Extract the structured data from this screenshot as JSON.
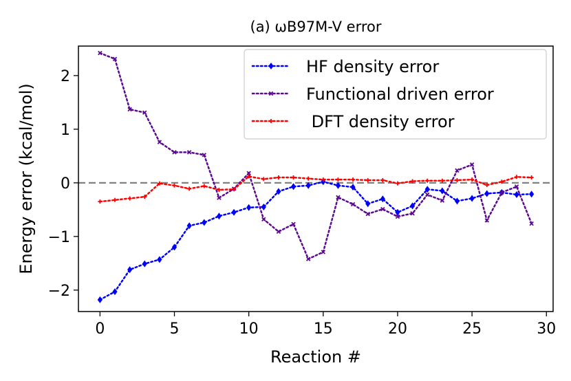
{
  "chart_data": {
    "type": "line",
    "title": "(a) ωB97M-V error",
    "xlabel": "Reaction #",
    "ylabel": "Energy error (kcal/mol)",
    "xlim": [
      -1.45,
      30.45
    ],
    "ylim": [
      -2.4,
      2.55
    ],
    "xticks": [
      0,
      5,
      10,
      15,
      20,
      25,
      30
    ],
    "yticks": [
      -2,
      -1,
      0,
      1,
      2
    ],
    "ytick_labels": [
      "−2",
      "−1",
      "0",
      "1",
      "2"
    ],
    "reference_line": {
      "y": 0,
      "style": "dashed",
      "color": "#808080"
    },
    "legend_position": "top-right",
    "x": [
      0,
      1,
      2,
      3,
      4,
      5,
      6,
      7,
      8,
      9,
      10,
      11,
      12,
      13,
      14,
      15,
      16,
      17,
      18,
      19,
      20,
      21,
      22,
      23,
      24,
      25,
      26,
      27,
      28,
      29
    ],
    "series": [
      {
        "name": "HF density error",
        "color": "#0000ff",
        "marker": "diamond",
        "values": [
          -2.18,
          -2.03,
          -1.62,
          -1.51,
          -1.43,
          -1.2,
          -0.8,
          -0.74,
          -0.62,
          -0.55,
          -0.46,
          -0.45,
          -0.16,
          -0.07,
          -0.05,
          0.02,
          -0.05,
          -0.08,
          -0.39,
          -0.3,
          -0.55,
          -0.43,
          -0.12,
          -0.15,
          -0.34,
          -0.29,
          -0.2,
          -0.18,
          -0.22,
          -0.21
        ]
      },
      {
        "name": "Functional driven error",
        "color": "#5b0a91",
        "marker": "x",
        "values": [
          2.42,
          2.31,
          1.37,
          1.31,
          0.76,
          0.57,
          0.57,
          0.52,
          -0.28,
          -0.11,
          0.18,
          -0.68,
          -0.91,
          -0.77,
          -1.42,
          -1.29,
          -0.27,
          -0.4,
          -0.58,
          -0.49,
          -0.63,
          -0.57,
          -0.22,
          -0.33,
          0.23,
          0.34,
          -0.7,
          -0.18,
          -0.07,
          -0.76
        ]
      },
      {
        "name": " DFT density error",
        "color": "#ff0000",
        "marker": "plus",
        "values": [
          -0.35,
          -0.32,
          -0.29,
          -0.26,
          -0.01,
          -0.05,
          -0.11,
          -0.06,
          -0.13,
          -0.12,
          0.12,
          0.07,
          0.1,
          0.1,
          0.08,
          0.06,
          0.06,
          0.06,
          0.05,
          0.05,
          -0.01,
          0.03,
          0.04,
          0.04,
          0.05,
          0.06,
          -0.04,
          0.02,
          0.11,
          0.1
        ]
      }
    ]
  }
}
